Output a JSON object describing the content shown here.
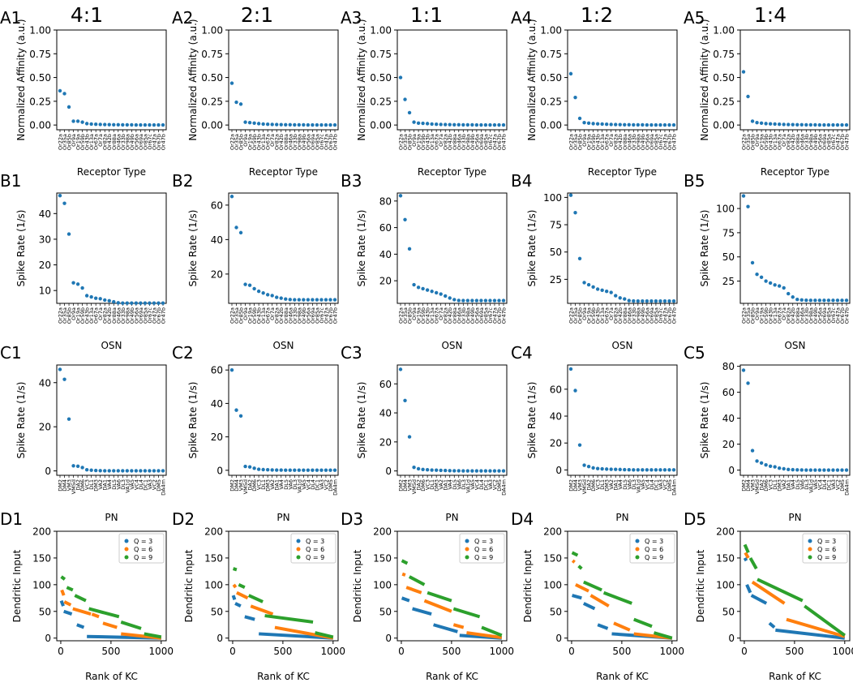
{
  "columns": [
    {
      "ratio": "4:1"
    },
    {
      "ratio": "2:1"
    },
    {
      "ratio": "1:1"
    },
    {
      "ratio": "1:2"
    },
    {
      "ratio": "1:4"
    }
  ],
  "colors": {
    "blue": "#1f77b4",
    "orange": "#ff7f0e",
    "green": "#2ca02c",
    "axis": "#000000"
  },
  "rows": {
    "A": {
      "ylabel": "Normalized Affinity (a.u.)",
      "xlabel": "Receptor Type",
      "yticks": [
        "0.00",
        "0.25",
        "0.50",
        "0.75",
        "1.00"
      ],
      "ylim": [
        -0.05,
        1.0
      ],
      "xticklabels": [
        "Or22a",
        "Or35a",
        "Or85b",
        "Or9a",
        "Or19a",
        "Or59b",
        "Or43b",
        "Or13a",
        "Or67a",
        "Or7a",
        "Or82a",
        "Or42b",
        "Or88a",
        "Or46a",
        "Or33b",
        "Or98a",
        "Or49b",
        "Or56a",
        "Or69a",
        "Or85a",
        "Or67c",
        "Or47a",
        "Or67b",
        "Or47b"
      ]
    },
    "B": {
      "ylabel": "Spike Rate (1/s)",
      "xlabel": "OSN",
      "xticklabels": [
        "Or22a",
        "Or35a",
        "Or85b",
        "Or9a",
        "Or19a",
        "Or59b",
        "Or43b",
        "Or13a",
        "Or67a",
        "Or7a",
        "Or82a",
        "Or42b",
        "Or88a",
        "Or46a",
        "Or33b",
        "Or98a",
        "Or49b",
        "Or56a",
        "Or69a",
        "Or85a",
        "Or67c",
        "Or47a",
        "Or67b",
        "Or47b"
      ]
    },
    "C": {
      "ylabel": "Spike Rate (1/s)",
      "xlabel": "PN",
      "xticklabels": [
        "DM2",
        "DM4",
        "VM3",
        "VM5d",
        "DA2",
        "DM6",
        "VC3",
        "DL1",
        "DM3",
        "VA2",
        "DA1",
        "VA4",
        "DL5",
        "VA6",
        "DL3",
        "VA1d",
        "VA5",
        "VC4",
        "DL4",
        "DC1",
        "VA3",
        "VC2",
        "DM5",
        "DA4m"
      ]
    },
    "D": {
      "ylabel": "Dendritic Input",
      "xlabel": "Rank of KC",
      "yticks": [
        "0",
        "50",
        "100",
        "150",
        "200"
      ],
      "xticks": [
        "0",
        "500",
        "1000"
      ],
      "legend": [
        "Q = 3",
        "Q = 6",
        "Q = 9"
      ]
    }
  },
  "chart_data": [
    {
      "id": "A1",
      "row": "A",
      "col": 0,
      "type": "scatter",
      "values": [
        0.36,
        0.33,
        0.19,
        0.04,
        0.04,
        0.03,
        0.015,
        0.01,
        0.008,
        0.006,
        0.005,
        0.004,
        0.003,
        0.003,
        0.002,
        0.002,
        0.002,
        0.001,
        0.001,
        0.001,
        0.001,
        0.001,
        0.001,
        0.001
      ]
    },
    {
      "id": "A2",
      "row": "A",
      "col": 1,
      "type": "scatter",
      "values": [
        0.44,
        0.24,
        0.22,
        0.03,
        0.025,
        0.02,
        0.015,
        0.01,
        0.008,
        0.006,
        0.005,
        0.004,
        0.003,
        0.003,
        0.002,
        0.002,
        0.002,
        0.001,
        0.001,
        0.001,
        0.001,
        0.001,
        0.001,
        0.001
      ]
    },
    {
      "id": "A3",
      "row": "A",
      "col": 2,
      "type": "scatter",
      "values": [
        0.5,
        0.27,
        0.13,
        0.03,
        0.02,
        0.018,
        0.015,
        0.01,
        0.008,
        0.006,
        0.005,
        0.004,
        0.003,
        0.003,
        0.002,
        0.002,
        0.002,
        0.001,
        0.001,
        0.001,
        0.001,
        0.001,
        0.001,
        0.001
      ]
    },
    {
      "id": "A4",
      "row": "A",
      "col": 3,
      "type": "scatter",
      "values": [
        0.54,
        0.29,
        0.07,
        0.025,
        0.02,
        0.015,
        0.012,
        0.01,
        0.008,
        0.006,
        0.005,
        0.004,
        0.003,
        0.003,
        0.002,
        0.002,
        0.002,
        0.001,
        0.001,
        0.001,
        0.001,
        0.001,
        0.001,
        0.001
      ]
    },
    {
      "id": "A5",
      "row": "A",
      "col": 4,
      "type": "scatter",
      "values": [
        0.56,
        0.3,
        0.04,
        0.025,
        0.02,
        0.015,
        0.012,
        0.01,
        0.008,
        0.006,
        0.005,
        0.004,
        0.003,
        0.003,
        0.002,
        0.002,
        0.002,
        0.001,
        0.001,
        0.001,
        0.001,
        0.001,
        0.001,
        0.001
      ]
    },
    {
      "id": "B1",
      "row": "B",
      "col": 0,
      "type": "scatter",
      "yticks": [
        "10",
        "20",
        "30",
        "40"
      ],
      "ylim": [
        5,
        48
      ],
      "values": [
        47,
        44,
        32,
        13,
        12.5,
        11,
        8,
        7.5,
        7,
        6.8,
        6.3,
        6,
        5.6,
        5.2,
        5.1,
        5.1,
        5.1,
        5.1,
        5.1,
        5.1,
        5.1,
        5.1,
        5.1,
        5.1
      ]
    },
    {
      "id": "B2",
      "row": "B",
      "col": 1,
      "type": "scatter",
      "yticks": [
        "20",
        "40",
        "60"
      ],
      "ylim": [
        3,
        67
      ],
      "values": [
        65,
        47,
        44,
        14,
        13.5,
        11.5,
        10,
        9,
        8,
        7.5,
        6.5,
        6,
        5.5,
        5.2,
        5.1,
        5.1,
        5.1,
        5.1,
        5.1,
        5.1,
        5.1,
        5.1,
        5.1,
        5.1
      ]
    },
    {
      "id": "B3",
      "row": "B",
      "col": 2,
      "type": "scatter",
      "yticks": [
        "20",
        "40",
        "60",
        "80"
      ],
      "ylim": [
        3,
        86
      ],
      "values": [
        84,
        66,
        44,
        17,
        15,
        14,
        13,
        12,
        11,
        10,
        8.5,
        7,
        5.8,
        5.2,
        5.1,
        5.1,
        5.1,
        5.1,
        5.1,
        5.1,
        5.1,
        5.1,
        5.1,
        5.1
      ]
    },
    {
      "id": "B4",
      "row": "B",
      "col": 3,
      "type": "scatter",
      "yticks": [
        "25",
        "50",
        "75",
        "100"
      ],
      "ylim": [
        3,
        104
      ],
      "values": [
        102,
        86,
        44,
        22,
        20,
        18,
        16,
        15,
        14,
        13,
        10,
        8,
        7,
        5.5,
        5.2,
        5.1,
        5.1,
        5.1,
        5.1,
        5.1,
        5.1,
        5.1,
        5.1,
        5.1
      ]
    },
    {
      "id": "B5",
      "row": "B",
      "col": 4,
      "type": "scatter",
      "yticks": [
        "25",
        "50",
        "75",
        "100"
      ],
      "ylim": [
        2,
        116
      ],
      "values": [
        113,
        102,
        44,
        32,
        29,
        25,
        23,
        21,
        20,
        18,
        12,
        8.5,
        6,
        5.5,
        5.2,
        5.1,
        5.1,
        5.1,
        5.1,
        5.1,
        5.1,
        5.1,
        5.1,
        5.1
      ]
    },
    {
      "id": "C1",
      "row": "C",
      "col": 0,
      "type": "scatter",
      "yticks": [
        "0",
        "20",
        "40"
      ],
      "ylim": [
        -2,
        48
      ],
      "values": [
        46,
        41.5,
        23.5,
        2.3,
        2.1,
        1.5,
        0.5,
        0.3,
        0.2,
        0.1,
        0.05,
        0.05,
        0.05,
        0.05,
        0.05,
        0.05,
        0.05,
        0.05,
        0.05,
        0.05,
        0.05,
        0.05,
        0.05,
        0.05
      ]
    },
    {
      "id": "C2",
      "row": "C",
      "col": 1,
      "type": "scatter",
      "yticks": [
        "0",
        "20",
        "40",
        "60"
      ],
      "ylim": [
        -3,
        63
      ],
      "values": [
        60,
        36,
        32.5,
        2.3,
        2,
        1.2,
        0.6,
        0.4,
        0.3,
        0.2,
        0.1,
        0.1,
        0.05,
        0.05,
        0.05,
        0.05,
        0.05,
        0.05,
        0.05,
        0.05,
        0.05,
        0.05,
        0.05,
        0.05
      ]
    },
    {
      "id": "C3",
      "row": "C",
      "col": 2,
      "type": "scatter",
      "yticks": [
        "0",
        "20",
        "40",
        "60"
      ],
      "ylim": [
        -3,
        73
      ],
      "values": [
        70,
        48.5,
        23.5,
        2.5,
        1.5,
        1,
        0.8,
        0.6,
        0.5,
        0.4,
        0.3,
        0.2,
        0.1,
        0.1,
        0.05,
        0.05,
        0.05,
        0.05,
        0.05,
        0.05,
        0.05,
        0.05,
        0.05,
        0.05
      ]
    },
    {
      "id": "C4",
      "row": "C",
      "col": 3,
      "type": "scatter",
      "yticks": [
        "0",
        "20",
        "40",
        "60"
      ],
      "ylim": [
        -4,
        78
      ],
      "values": [
        75,
        59,
        18.5,
        3.5,
        2.5,
        1.5,
        1,
        0.8,
        0.6,
        0.5,
        0.4,
        0.3,
        0.2,
        0.1,
        0.05,
        0.05,
        0.05,
        0.05,
        0.05,
        0.05,
        0.05,
        0.05,
        0.05,
        0.05
      ]
    },
    {
      "id": "C5",
      "row": "C",
      "col": 4,
      "type": "scatter",
      "yticks": [
        "0",
        "20",
        "40",
        "60",
        "80"
      ],
      "ylim": [
        -4,
        81
      ],
      "values": [
        77,
        67,
        15,
        7,
        5.5,
        4,
        3,
        2.5,
        1.5,
        1,
        0.5,
        0.3,
        0.2,
        0.1,
        0.05,
        0.05,
        0.05,
        0.05,
        0.05,
        0.05,
        0.05,
        0.05,
        0.05,
        0.05
      ]
    },
    {
      "id": "D1",
      "row": "D",
      "col": 0,
      "type": "scatter",
      "xlim": [
        -40,
        1050
      ],
      "ylim": [
        -5,
        200
      ],
      "series": [
        {
          "name": "Q = 3",
          "segments": [
            [
              5,
              70,
              25,
              60
            ],
            [
              30,
              50,
              110,
              45
            ],
            [
              160,
              25,
              230,
              20
            ],
            [
              260,
              3,
              1000,
              0
            ]
          ]
        },
        {
          "name": "Q = 6",
          "segments": [
            [
              10,
              90,
              30,
              80
            ],
            [
              35,
              68,
              100,
              62
            ],
            [
              120,
              55,
              300,
              45
            ],
            [
              310,
              45,
              380,
              40
            ],
            [
              420,
              28,
              560,
              20
            ],
            [
              600,
              8,
              1000,
              0
            ]
          ]
        },
        {
          "name": "Q = 9",
          "segments": [
            [
              5,
              115,
              40,
              110
            ],
            [
              60,
              95,
              120,
              90
            ],
            [
              140,
              80,
              250,
              70
            ],
            [
              280,
              55,
              580,
              40
            ],
            [
              600,
              30,
              800,
              18
            ],
            [
              830,
              8,
              1000,
              2
            ]
          ]
        }
      ]
    },
    {
      "id": "D2",
      "row": "D",
      "col": 1,
      "type": "scatter",
      "xlim": [
        -40,
        1050
      ],
      "ylim": [
        -5,
        200
      ],
      "series": [
        {
          "name": "Q = 3",
          "segments": [
            [
              5,
              80,
              20,
              72
            ],
            [
              25,
              65,
              80,
              60
            ],
            [
              120,
              40,
              220,
              35
            ],
            [
              260,
              8,
              1000,
              0
            ]
          ]
        },
        {
          "name": "Q = 6",
          "segments": [
            [
              10,
              100,
              30,
              95
            ],
            [
              40,
              85,
              150,
              75
            ],
            [
              180,
              60,
              400,
              45
            ],
            [
              420,
              20,
              1000,
              0
            ]
          ]
        },
        {
          "name": "Q = 9",
          "segments": [
            [
              5,
              130,
              40,
              128
            ],
            [
              60,
              100,
              120,
              95
            ],
            [
              160,
              80,
              300,
              68
            ],
            [
              320,
              42,
              800,
              30
            ],
            [
              820,
              10,
              1000,
              2
            ]
          ]
        }
      ]
    },
    {
      "id": "D3",
      "row": "D",
      "col": 2,
      "type": "scatter",
      "xlim": [
        -40,
        1050
      ],
      "ylim": [
        -5,
        200
      ],
      "series": [
        {
          "name": "Q = 3",
          "segments": [
            [
              5,
              75,
              80,
              70
            ],
            [
              110,
              55,
              300,
              45
            ],
            [
              320,
              25,
              560,
              12
            ],
            [
              580,
              5,
              1000,
              0
            ]
          ]
        },
        {
          "name": "Q = 6",
          "segments": [
            [
              10,
              120,
              40,
              118
            ],
            [
              50,
              95,
              200,
              85
            ],
            [
              230,
              70,
              500,
              50
            ],
            [
              520,
              25,
              620,
              20
            ],
            [
              650,
              10,
              1000,
              1
            ]
          ]
        },
        {
          "name": "Q = 9",
          "segments": [
            [
              5,
              145,
              60,
              140
            ],
            [
              80,
              115,
              230,
              100
            ],
            [
              260,
              85,
              500,
              70
            ],
            [
              520,
              55,
              780,
              40
            ],
            [
              800,
              20,
              1000,
              5
            ]
          ]
        }
      ]
    },
    {
      "id": "D4",
      "row": "D",
      "col": 3,
      "type": "scatter",
      "xlim": [
        -40,
        1050
      ],
      "ylim": [
        -5,
        200
      ],
      "series": [
        {
          "name": "Q = 3",
          "segments": [
            [
              5,
              80,
              100,
              75
            ],
            [
              120,
              65,
              230,
              55
            ],
            [
              260,
              25,
              360,
              18
            ],
            [
              400,
              8,
              1000,
              0
            ]
          ]
        },
        {
          "name": "Q = 6",
          "segments": [
            [
              10,
              145,
              30,
              142
            ],
            [
              40,
              100,
              170,
              88
            ],
            [
              190,
              80,
              370,
              60
            ],
            [
              420,
              28,
              580,
              15
            ],
            [
              620,
              8,
              1000,
              0
            ]
          ]
        },
        {
          "name": "Q = 9",
          "segments": [
            [
              5,
              160,
              60,
              155
            ],
            [
              70,
              135,
              100,
              130
            ],
            [
              120,
              105,
              300,
              90
            ],
            [
              320,
              85,
              600,
              65
            ],
            [
              620,
              35,
              800,
              22
            ],
            [
              820,
              10,
              1000,
              0
            ]
          ]
        }
      ]
    },
    {
      "id": "D5",
      "row": "D",
      "col": 4,
      "type": "scatter",
      "xlim": [
        -40,
        1050
      ],
      "ylim": [
        -5,
        200
      ],
      "series": [
        {
          "name": "Q = 3",
          "segments": [
            [
              5,
              150,
              20,
              145
            ],
            [
              25,
              100,
              60,
              85
            ],
            [
              70,
              80,
              220,
              65
            ],
            [
              250,
              28,
              300,
              20
            ],
            [
              310,
              15,
              1000,
              0
            ]
          ]
        },
        {
          "name": "Q = 6",
          "segments": [
            [
              10,
              160,
              40,
              150
            ],
            [
              80,
              105,
              400,
              65
            ],
            [
              420,
              35,
              1000,
              3
            ]
          ]
        },
        {
          "name": "Q = 9",
          "segments": [
            [
              5,
              175,
              40,
              160
            ],
            [
              60,
              150,
              120,
              130
            ],
            [
              130,
              110,
              580,
              70
            ],
            [
              600,
              60,
              1000,
              5
            ]
          ]
        }
      ]
    }
  ]
}
